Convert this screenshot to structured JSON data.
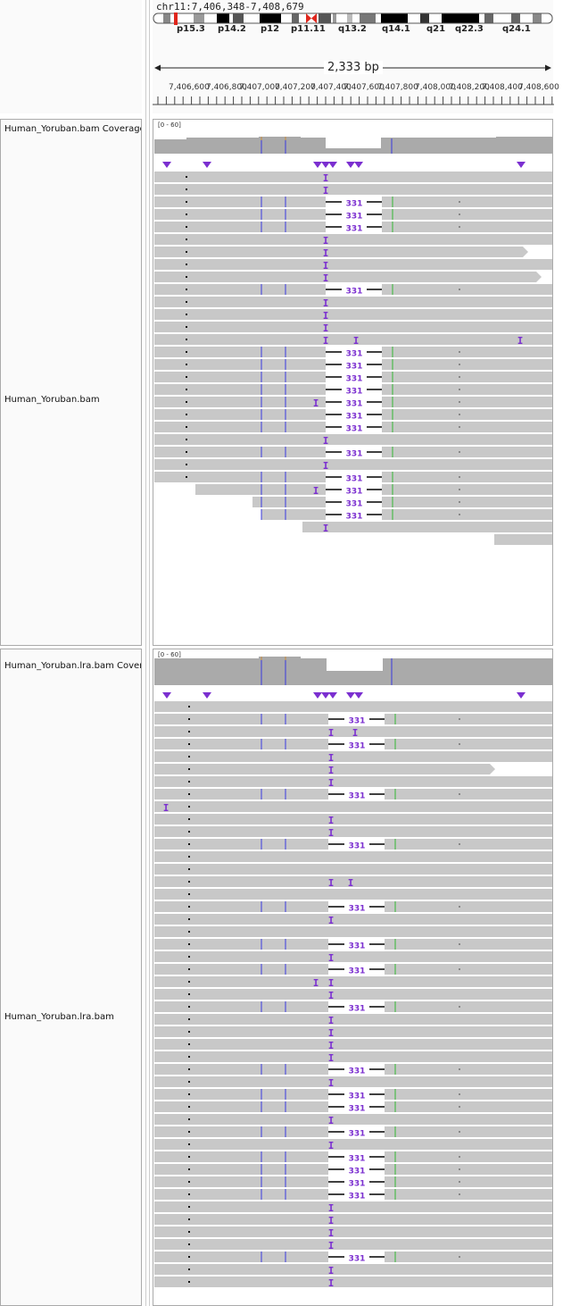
{
  "locus": "chr11:7,406,348-7,408,679",
  "cytobands": [
    "p15.3",
    "p14.2",
    "p12",
    "p11.11",
    "q13.2",
    "q14.1",
    "q21",
    "q22.3",
    "q24.1"
  ],
  "region_width": "2,333 bp",
  "ruler_ticks": [
    "7,406,600",
    "7,406,800",
    "7,407,000",
    "7,407,200",
    "7,407,400",
    "7,407,600",
    "7,407,800",
    "7,408,000",
    "7,408,200",
    "7,408,400",
    "7,408,600"
  ],
  "tracks": [
    {
      "coverage_label": "Human_Yoruban.bam Coverage",
      "scale": "[0 - 60]",
      "alignment_label": "Human_Yoruban.bam"
    },
    {
      "coverage_label": "Human_Yoruban.lra.bam Coverage",
      "scale": "[0 - 60]",
      "alignment_label": "Human_Yoruban.lra.bam"
    }
  ],
  "deletion_size": "331",
  "insertion_glyph": "I",
  "colors": {
    "read": "#c8c8c8",
    "coverage": "#aaaaaa",
    "insertion": "#7b2fd0",
    "deletion_line": "#000000",
    "mismatch_blue": "#3a3adf",
    "mismatch_green": "#33b833",
    "mismatch_orange": "#c88a3a",
    "centromere": "#e0261c"
  },
  "section1_rows": [
    {
      "del": false,
      "ins": [
        364
      ],
      "mm": false,
      "end": 620
    },
    {
      "del": false,
      "ins": [
        364
      ],
      "mm": false,
      "end": 620
    },
    {
      "del": true,
      "ins": [],
      "mm": true,
      "end": 620
    },
    {
      "del": true,
      "ins": [],
      "mm": true,
      "end": 620
    },
    {
      "del": true,
      "ins": [],
      "mm": true,
      "end": 620
    },
    {
      "del": false,
      "ins": [
        364
      ],
      "mm": false,
      "end": 620
    },
    {
      "del": false,
      "ins": [
        364
      ],
      "mm": false,
      "end": 585
    },
    {
      "del": false,
      "ins": [
        364
      ],
      "mm": false,
      "end": 620
    },
    {
      "del": false,
      "ins": [
        364
      ],
      "mm": false,
      "end": 600
    },
    {
      "del": true,
      "ins": [],
      "mm": true,
      "end": 620,
      "gap": true
    },
    {
      "del": false,
      "ins": [
        364
      ],
      "mm": false,
      "end": 620
    },
    {
      "del": false,
      "ins": [
        364
      ],
      "mm": false,
      "end": 620
    },
    {
      "del": false,
      "ins": [
        364
      ],
      "mm": false,
      "end": 620
    },
    {
      "del": false,
      "ins": [
        364,
        398,
        582
      ],
      "mm": false,
      "end": 620
    },
    {
      "del": true,
      "ins": [],
      "mm": true,
      "end": 620
    },
    {
      "del": true,
      "ins": [],
      "mm": true,
      "end": 620
    },
    {
      "del": true,
      "ins": [],
      "mm": true,
      "end": 620
    },
    {
      "del": true,
      "ins": [],
      "mm": true,
      "end": 620
    },
    {
      "del": true,
      "ins": [
        353
      ],
      "mm": true,
      "end": 620
    },
    {
      "del": true,
      "ins": [],
      "mm": true,
      "end": 620
    },
    {
      "del": true,
      "ins": [],
      "mm": true,
      "end": 620
    },
    {
      "del": false,
      "ins": [
        364
      ],
      "mm": false,
      "end": 620
    },
    {
      "del": true,
      "ins": [],
      "mm": true,
      "end": 620
    },
    {
      "del": false,
      "ins": [
        364
      ],
      "mm": false,
      "end": 620
    },
    {
      "del": true,
      "ins": [],
      "mm": true,
      "end": 620
    },
    {
      "del": true,
      "ins": [
        353
      ],
      "mm": true,
      "end": 620,
      "start": 218
    },
    {
      "del": true,
      "ins": [],
      "mm": true,
      "end": 620,
      "start": 282
    },
    {
      "del": true,
      "ins": [],
      "mm": true,
      "end": 620,
      "start": 292
    },
    {
      "del": false,
      "ins": [
        364
      ],
      "mm": false,
      "end": 620,
      "start": 338
    },
    {
      "del": false,
      "ins": [],
      "mm": false,
      "end": 620,
      "start": 553
    }
  ],
  "section2_rows": [
    {
      "del": false,
      "ins": [],
      "mm": false,
      "end": 620
    },
    {
      "del": true,
      "ins": [],
      "mm": true,
      "end": 620
    },
    {
      "del": false,
      "ins": [
        370,
        397
      ],
      "mm": false,
      "end": 620
    },
    {
      "del": true,
      "ins": [],
      "mm": true,
      "end": 620
    },
    {
      "del": false,
      "ins": [
        370
      ],
      "mm": false,
      "end": 620
    },
    {
      "del": false,
      "ins": [
        370
      ],
      "mm": false,
      "end": 548
    },
    {
      "del": false,
      "ins": [
        370
      ],
      "mm": false,
      "end": 620
    },
    {
      "del": true,
      "ins": [],
      "mm": true,
      "end": 620
    },
    {
      "del": false,
      "ins": [
        185
      ],
      "mm": false,
      "end": 620
    },
    {
      "del": false,
      "ins": [
        370
      ],
      "mm": false,
      "end": 620
    },
    {
      "del": false,
      "ins": [
        370
      ],
      "mm": false,
      "end": 620
    },
    {
      "del": true,
      "ins": [],
      "mm": true,
      "end": 620
    },
    {
      "del": false,
      "ins": [],
      "mm": false,
      "end": 620
    },
    {
      "del": false,
      "ins": [],
      "mm": false,
      "end": 620
    },
    {
      "del": false,
      "ins": [
        370,
        392
      ],
      "mm": false,
      "end": 620
    },
    {
      "del": false,
      "ins": [],
      "mm": false,
      "end": 620
    },
    {
      "del": true,
      "ins": [],
      "mm": true,
      "end": 620
    },
    {
      "del": false,
      "ins": [
        370
      ],
      "mm": false,
      "end": 620
    },
    {
      "del": false,
      "ins": [],
      "mm": false,
      "end": 620
    },
    {
      "del": true,
      "ins": [],
      "mm": true,
      "end": 620
    },
    {
      "del": false,
      "ins": [
        370
      ],
      "mm": false,
      "end": 620
    },
    {
      "del": true,
      "ins": [],
      "mm": true,
      "end": 620
    },
    {
      "del": false,
      "ins": [
        353,
        370
      ],
      "mm": false,
      "end": 620
    },
    {
      "del": false,
      "ins": [
        370
      ],
      "mm": false,
      "end": 620
    },
    {
      "del": true,
      "ins": [],
      "mm": true,
      "end": 620
    },
    {
      "del": false,
      "ins": [
        370
      ],
      "mm": false,
      "end": 620
    },
    {
      "del": false,
      "ins": [
        370
      ],
      "mm": false,
      "end": 620
    },
    {
      "del": false,
      "ins": [
        370
      ],
      "mm": false,
      "end": 620
    },
    {
      "del": false,
      "ins": [
        370
      ],
      "mm": false,
      "end": 620
    },
    {
      "del": true,
      "ins": [],
      "mm": true,
      "end": 620
    },
    {
      "del": false,
      "ins": [
        370
      ],
      "mm": false,
      "end": 620
    },
    {
      "del": true,
      "ins": [],
      "mm": true,
      "end": 620
    },
    {
      "del": true,
      "ins": [],
      "mm": true,
      "end": 620
    },
    {
      "del": false,
      "ins": [
        370
      ],
      "mm": false,
      "end": 620
    },
    {
      "del": true,
      "ins": [],
      "mm": true,
      "end": 620
    },
    {
      "del": false,
      "ins": [
        370
      ],
      "mm": false,
      "end": 620
    },
    {
      "del": true,
      "ins": [],
      "mm": true,
      "end": 620
    },
    {
      "del": true,
      "ins": [],
      "mm": true,
      "end": 620
    },
    {
      "del": true,
      "ins": [],
      "mm": true,
      "end": 620
    },
    {
      "del": true,
      "ins": [],
      "mm": true,
      "end": 620
    },
    {
      "del": false,
      "ins": [
        370
      ],
      "mm": false,
      "end": 620
    },
    {
      "del": false,
      "ins": [
        370
      ],
      "mm": false,
      "end": 620
    },
    {
      "del": false,
      "ins": [
        370
      ],
      "mm": false,
      "end": 620
    },
    {
      "del": false,
      "ins": [
        370
      ],
      "mm": false,
      "end": 620
    },
    {
      "del": true,
      "ins": [],
      "mm": true,
      "end": 620
    },
    {
      "del": false,
      "ins": [
        370
      ],
      "mm": false,
      "end": 620
    },
    {
      "del": false,
      "ins": [
        370
      ],
      "mm": false,
      "end": 620
    }
  ]
}
